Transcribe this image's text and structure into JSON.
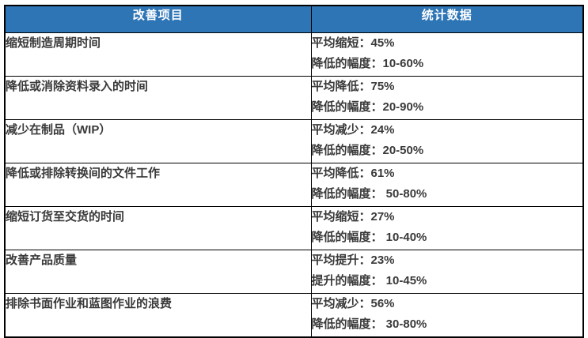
{
  "colors": {
    "header_bg": "#2E75B6",
    "header_text": "#FFFFFF",
    "border": "#000000",
    "cell_text": "#3A3A3A"
  },
  "table": {
    "headers": {
      "item": "改善项目",
      "stats": "统计数据"
    },
    "rows": [
      {
        "item": "缩短制造周期时间",
        "line1": "平均缩短：45%",
        "line2": "降低的幅度：10-60%"
      },
      {
        "item": "降低或消除资料录入的时间",
        "line1": "平均降低：75%",
        "line2": "降低的幅度：20-90%"
      },
      {
        "item": "减少在制品（WIP）",
        "line1": "平均减少：24%",
        "line2": "降低的幅度：20-50%"
      },
      {
        "item": "降低或排除转换间的文件工作",
        "line1": "平均降低：61%",
        "line2": "降低的幅度： 50-80%"
      },
      {
        "item": "缩短订货至交货的时间",
        "line1": "平均缩短：27%",
        "line2": "降低的幅度： 10-40%"
      },
      {
        "item": "改善产品质量",
        "line1": "平均提升：23%",
        "line2": "提升的幅度： 10-45%"
      },
      {
        "item": "排除书面作业和蓝图作业的浪费",
        "line1": "平均减少：56%",
        "line2": "降低的幅度： 30-80%"
      }
    ]
  }
}
